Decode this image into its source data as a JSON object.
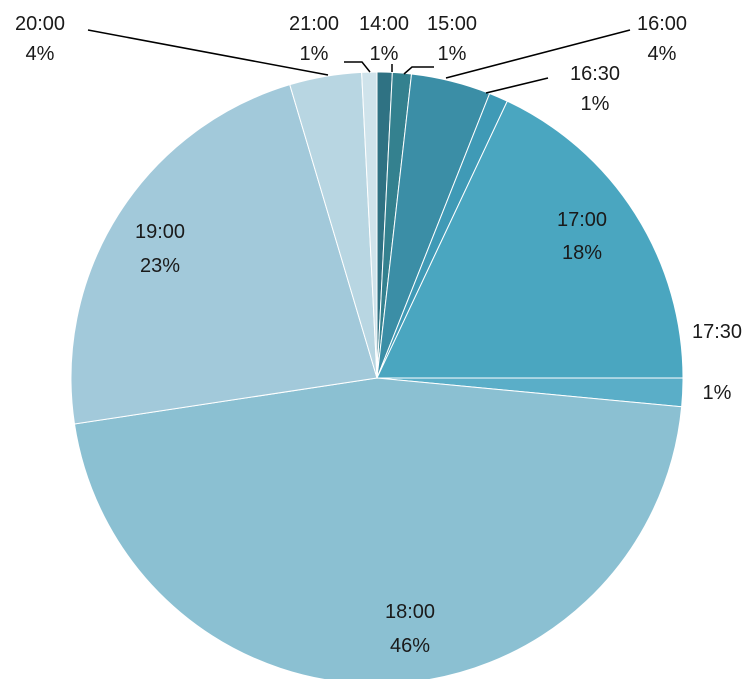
{
  "chart_data": {
    "type": "pie",
    "title": "",
    "slices": [
      {
        "label": "14:00",
        "percent_label": "1%",
        "value": 0.8,
        "color": "#2f7283"
      },
      {
        "label": "15:00",
        "percent_label": "1%",
        "value": 1.0,
        "color": "#34818f"
      },
      {
        "label": "16:00",
        "percent_label": "4%",
        "value": 4.2,
        "color": "#3b8ea6"
      },
      {
        "label": "16:30",
        "percent_label": "1%",
        "value": 1.0,
        "color": "#3f9ab6"
      },
      {
        "label": "17:00",
        "percent_label": "18%",
        "value": 18.0,
        "color": "#4aa6c0"
      },
      {
        "label": "17:30",
        "percent_label": "1%",
        "value": 1.5,
        "color": "#5aaec8"
      },
      {
        "label": "18:00",
        "percent_label": "46%",
        "value": 46.1,
        "color": "#8bc0d2"
      },
      {
        "label": "19:00",
        "percent_label": "23%",
        "value": 22.8,
        "color": "#a2c9da"
      },
      {
        "label": "20:00",
        "percent_label": "4%",
        "value": 3.8,
        "color": "#b8d6e2"
      },
      {
        "label": "21:00",
        "percent_label": "1%",
        "value": 0.8,
        "color": "#cfe3eb"
      }
    ]
  }
}
